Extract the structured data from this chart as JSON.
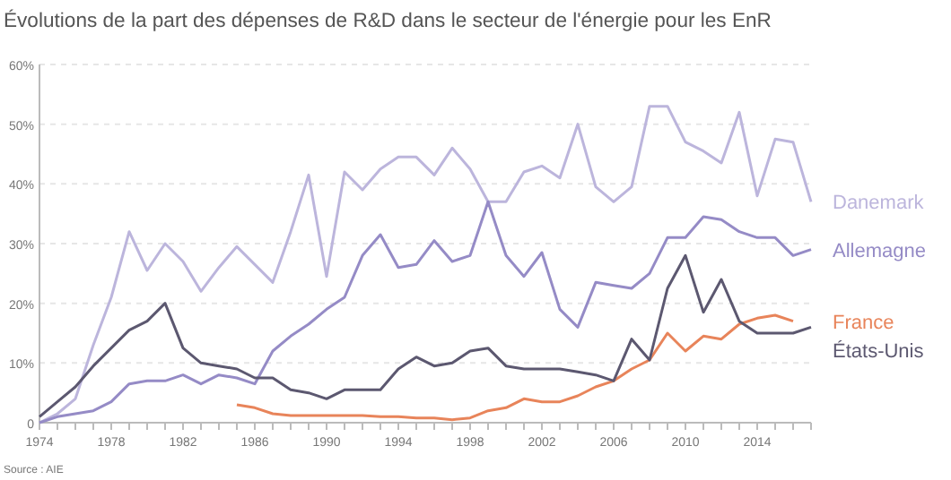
{
  "chart_data": {
    "type": "line",
    "title": "Évolutions de la part des dépenses de R&D dans le secteur de l'énergie pour les EnR",
    "annotations": [
      "Source : AIE"
    ],
    "x": [
      1974,
      1975,
      1976,
      1977,
      1978,
      1979,
      1980,
      1981,
      1982,
      1983,
      1984,
      1985,
      1986,
      1987,
      1988,
      1989,
      1990,
      1991,
      1992,
      1993,
      1994,
      1995,
      1996,
      1997,
      1998,
      1999,
      2000,
      2001,
      2002,
      2003,
      2004,
      2005,
      2006,
      2007,
      2008,
      2009,
      2010,
      2011,
      2012,
      2013,
      2014,
      2015,
      2016,
      2017
    ],
    "series": [
      {
        "name": "Danemark",
        "color": "#bcb5dc",
        "values": [
          0,
          1.5,
          4,
          13,
          21,
          32,
          25.5,
          30,
          27,
          22,
          26,
          29.5,
          26.5,
          23.5,
          32,
          41.5,
          24.5,
          42,
          39,
          42.5,
          44.5,
          44.5,
          41.5,
          46,
          42.5,
          37,
          37,
          42,
          43,
          41,
          50,
          39.5,
          37,
          39.5,
          53,
          53,
          47,
          45.5,
          43.5,
          52,
          38,
          47.5,
          47,
          37
        ]
      },
      {
        "name": "Allemagne",
        "color": "#958bc6",
        "values": [
          0,
          1,
          1.5,
          2,
          3.5,
          6.5,
          7,
          7,
          8,
          6.5,
          8,
          7.5,
          6.5,
          12,
          14.5,
          16.5,
          19,
          21,
          28,
          31.5,
          26,
          26.5,
          30.5,
          27,
          28,
          37,
          28,
          24.5,
          28.5,
          19,
          16,
          23.5,
          23,
          22.5,
          25,
          31,
          31,
          34.5,
          34,
          32,
          31,
          31,
          28,
          29
        ]
      },
      {
        "name": "France",
        "color": "#e8845a",
        "values": [
          null,
          null,
          null,
          null,
          null,
          null,
          null,
          null,
          null,
          null,
          null,
          3,
          2.5,
          1.5,
          1.2,
          1.2,
          1.2,
          1.2,
          1.2,
          1,
          1,
          0.8,
          0.8,
          0.5,
          0.8,
          2,
          2.5,
          4,
          3.5,
          3.5,
          4.5,
          6,
          7,
          9,
          10.5,
          15,
          12,
          14.5,
          14,
          16.5,
          17.5,
          18,
          17,
          null
        ]
      },
      {
        "name": "États-Unis",
        "color": "#5c5870",
        "values": [
          1,
          3.5,
          6,
          9.5,
          12.5,
          15.5,
          17,
          20,
          12.5,
          10,
          9.5,
          9,
          7.5,
          7.5,
          5.5,
          5,
          4,
          5.5,
          5.5,
          5.5,
          9,
          11,
          9.5,
          10,
          12,
          12.5,
          9.5,
          9,
          9,
          9,
          8.5,
          8,
          7,
          14,
          10.5,
          22.5,
          28,
          18.5,
          24,
          17,
          15,
          15,
          15,
          16
        ]
      }
    ],
    "xlim": [
      1974,
      2017
    ],
    "xticks": [
      1974,
      {
        "value": 1975,
        "label": null
      },
      {
        "value": 1976,
        "label": null
      },
      {
        "value": 1977,
        "label": null
      },
      1978,
      {
        "value": 1979,
        "label": null
      },
      {
        "value": 1980,
        "label": null
      },
      {
        "value": 1981,
        "label": null
      },
      1982,
      {
        "value": 1983,
        "label": null
      },
      {
        "value": 1984,
        "label": null
      },
      {
        "value": 1985,
        "label": null
      },
      1986,
      {
        "value": 1987,
        "label": null
      },
      {
        "value": 1988,
        "label": null
      },
      {
        "value": 1989,
        "label": null
      },
      1990,
      {
        "value": 1991,
        "label": null
      },
      {
        "value": 1992,
        "label": null
      },
      {
        "value": 1993,
        "label": null
      },
      1994,
      {
        "value": 1995,
        "label": null
      },
      {
        "value": 1996,
        "label": null
      },
      {
        "value": 1997,
        "label": null
      },
      1998,
      {
        "value": 1999,
        "label": null
      },
      {
        "value": 2000,
        "label": null
      },
      {
        "value": 2001,
        "label": null
      },
      2002,
      {
        "value": 2003,
        "label": null
      },
      {
        "value": 2004,
        "label": null
      },
      {
        "value": 2005,
        "label": null
      },
      2006,
      {
        "value": 2007,
        "label": null
      },
      {
        "value": 2008,
        "label": null
      },
      {
        "value": 2009,
        "label": null
      },
      2010,
      {
        "value": 2011,
        "label": null
      },
      {
        "value": 2012,
        "label": null
      },
      {
        "value": 2013,
        "label": null
      },
      2014,
      {
        "value": 2015,
        "label": null
      },
      {
        "value": 2016,
        "label": null
      },
      {
        "value": 2017,
        "label": null
      }
    ],
    "ylim": [
      0,
      60
    ],
    "yticks": [
      0,
      {
        "value": 10,
        "label": "10%"
      },
      {
        "value": 20,
        "label": "20%"
      },
      {
        "value": 30,
        "label": "30%"
      },
      {
        "value": 40,
        "label": "40%"
      },
      {
        "value": 50,
        "label": "50%"
      },
      {
        "value": 60,
        "label": "60%"
      }
    ],
    "grid": "y",
    "legend": "right",
    "marker": "none",
    "line_style": "solid"
  }
}
